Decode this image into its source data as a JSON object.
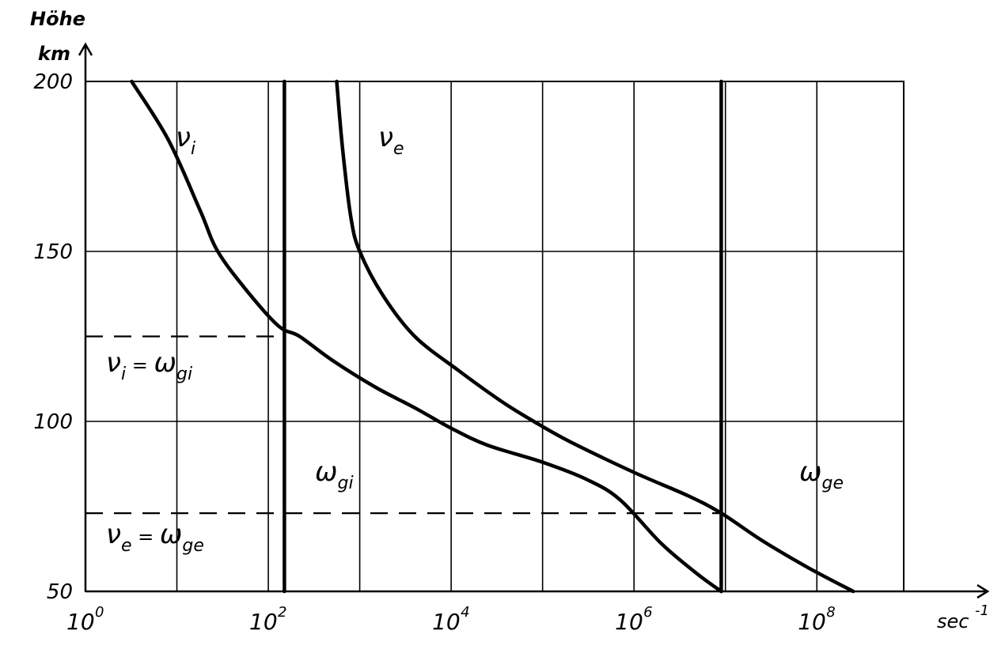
{
  "chart_data": {
    "type": "line",
    "x_scale": "log10",
    "xlim": [
      1,
      1000000000
    ],
    "ylim": [
      50,
      200
    ],
    "grid": true,
    "ylabel_line1": "Höhe",
    "ylabel_line2": "km",
    "xunit": "sec",
    "xunit_exp": "-1",
    "yticks": [
      "50",
      "100",
      "150",
      "200"
    ],
    "yticks_values": [
      50,
      100,
      150,
      200
    ],
    "xticks": [
      {
        "base": "10",
        "exp": "0",
        "value": 1
      },
      {
        "base": "10",
        "exp": "2",
        "value": 100
      },
      {
        "base": "10",
        "exp": "4",
        "value": 10000
      },
      {
        "base": "10",
        "exp": "6",
        "value": 1000000
      },
      {
        "base": "10",
        "exp": "8",
        "value": 100000000
      }
    ],
    "series": [
      {
        "name": "νi",
        "symbol": "ν",
        "sub": "i",
        "points": [
          [
            3.2,
            200
          ],
          [
            8,
            183
          ],
          [
            18,
            162
          ],
          [
            28,
            150
          ],
          [
            60,
            138
          ],
          [
            130,
            128
          ],
          [
            220,
            125
          ],
          [
            500,
            118
          ],
          [
            1500,
            110
          ],
          [
            4000,
            104
          ],
          [
            10000,
            98
          ],
          [
            25000,
            93
          ],
          [
            100000,
            88
          ],
          [
            300000,
            83
          ],
          [
            700000,
            77
          ],
          [
            2000000,
            64
          ],
          [
            5000000,
            55
          ],
          [
            9000000,
            50
          ]
        ]
      },
      {
        "name": "νe",
        "symbol": "ν",
        "sub": "e",
        "points": [
          [
            560,
            200
          ],
          [
            650,
            180
          ],
          [
            800,
            160
          ],
          [
            1000,
            150
          ],
          [
            1800,
            137
          ],
          [
            4000,
            125
          ],
          [
            12000,
            115
          ],
          [
            35000,
            106
          ],
          [
            80000,
            100
          ],
          [
            200000,
            94
          ],
          [
            1000000,
            85
          ],
          [
            4000000,
            78
          ],
          [
            9000000,
            73
          ],
          [
            25000000,
            65
          ],
          [
            80000000,
            57
          ],
          [
            250000000,
            50
          ]
        ]
      },
      {
        "name": "ωgi",
        "symbol": "ω",
        "sub": "gi",
        "points": [
          [
            150,
            50
          ],
          [
            150,
            200
          ]
        ]
      },
      {
        "name": "ωge",
        "symbol": "ω",
        "sub": "ge",
        "points": [
          [
            9000000,
            50
          ],
          [
            9000000,
            200
          ]
        ]
      }
    ],
    "annotations": [
      {
        "lhs_symbol": "ν",
        "lhs_sub": "i",
        "eq": "=",
        "rhs_symbol": "ω",
        "rhs_sub": "gi",
        "y": 125,
        "x_end": 150
      },
      {
        "lhs_symbol": "ν",
        "lhs_sub": "e",
        "eq": "=",
        "rhs_symbol": "ω",
        "rhs_sub": "ge",
        "y": 73,
        "x_end": 9000000
      }
    ],
    "colors": {
      "ink": "#000000",
      "background": "#ffffff"
    }
  }
}
